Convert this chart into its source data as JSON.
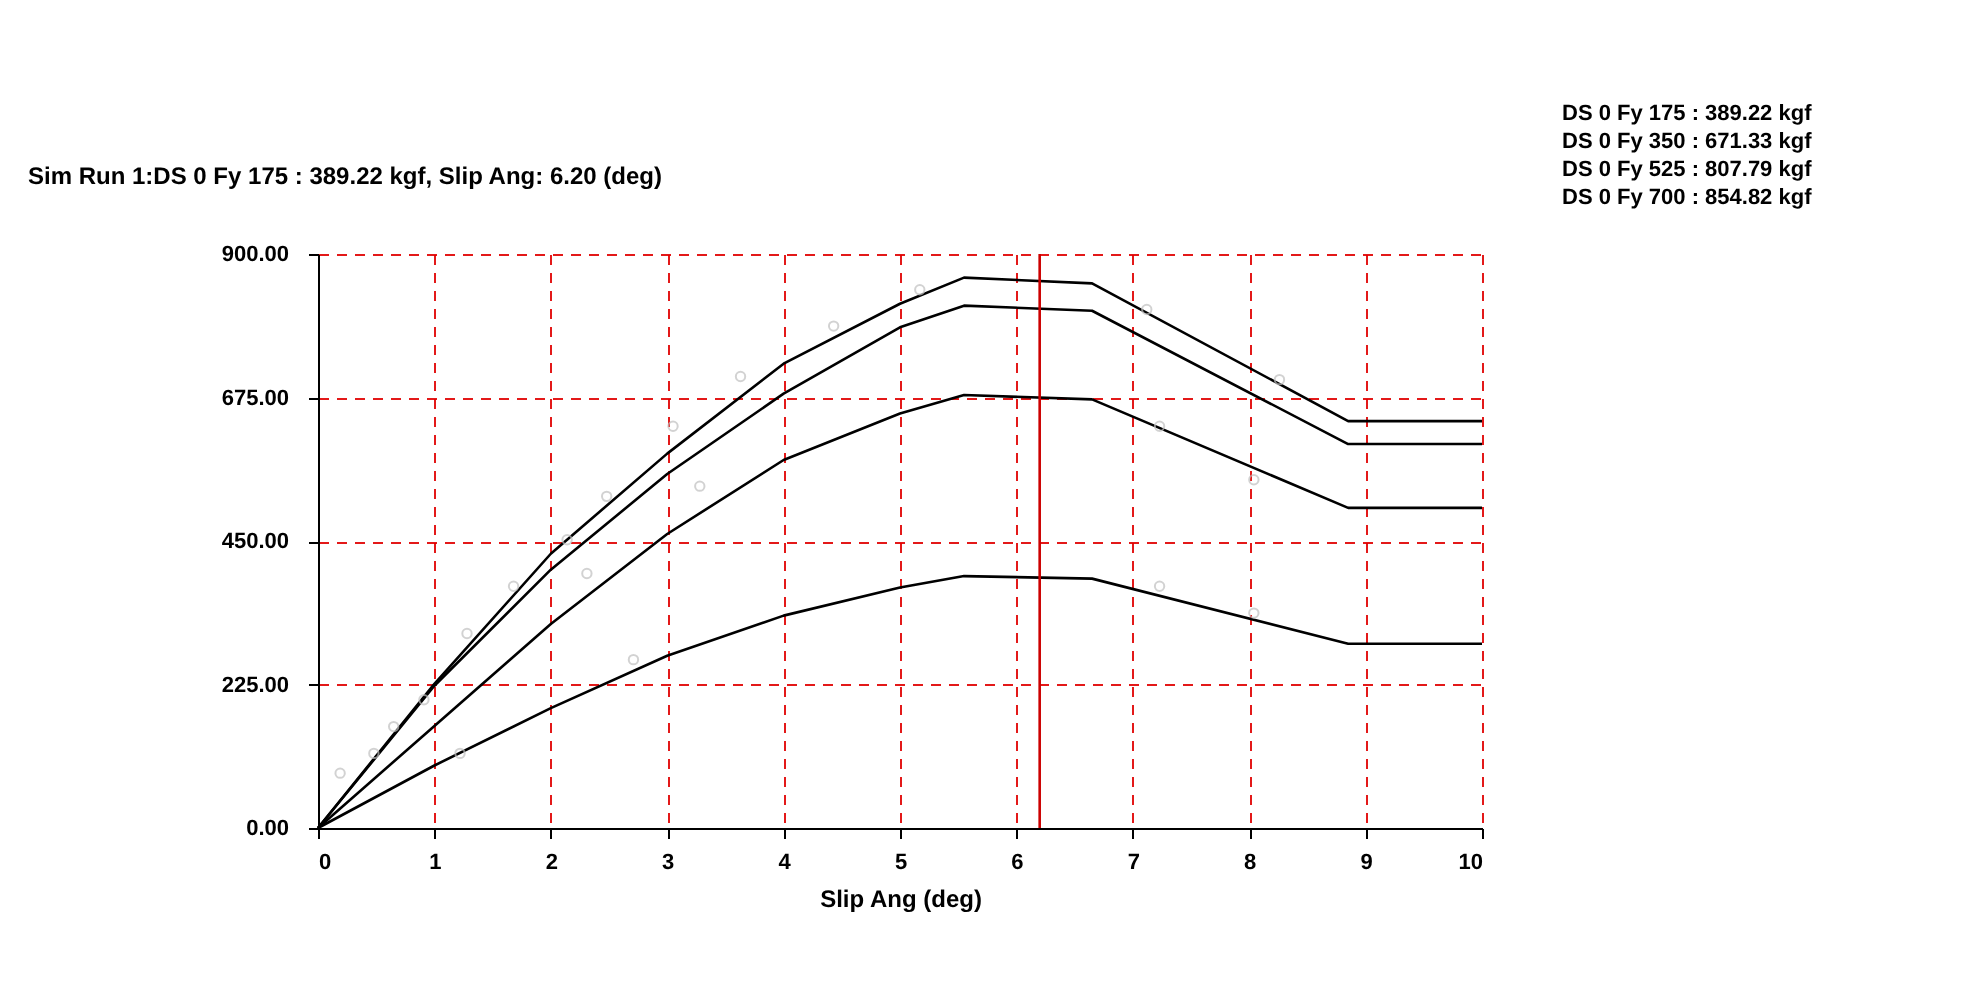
{
  "chart_data": {
    "type": "line",
    "title": "Sim Run 1:DS 0 Fy 175 : 389.22  kgf, Slip Ang: 6.20 (deg)",
    "xlabel": "Slip Ang (deg)",
    "annotations": [
      "DS 0 Fy 175 : 389.22  kgf",
      "DS 0 Fy 350 : 671.33  kgf",
      "DS 0 Fy 525 : 807.79  kgf",
      "DS 0 Fy 700 : 854.82  kgf"
    ],
    "x": [
      0,
      1,
      2,
      3,
      4,
      5,
      5.55,
      6.65,
      8.85,
      10
    ],
    "series": [
      {
        "color": "#000000",
        "values": [
          0,
          98,
          188,
          270,
          333,
          377,
          395,
          391,
          289,
          289
        ]
      },
      {
        "color": "#000000",
        "values": [
          0,
          160,
          320,
          461,
          577,
          650,
          679,
          672,
          502,
          502
        ]
      },
      {
        "color": "#000000",
        "values": [
          0,
          223,
          405,
          555,
          681,
          785,
          819,
          811,
          602,
          602
        ]
      },
      {
        "color": "#000000",
        "values": [
          0,
          226,
          430,
          587,
          728,
          822,
          863,
          854,
          638,
          638
        ]
      },
      {
        "type": "scatter",
        "color": "#c0c0c0",
        "marker": "circle",
        "x": [
          0.19,
          0.48,
          0.65,
          0.91,
          1.22,
          1.28,
          1.68,
          2.14,
          2.31,
          2.48,
          2.71,
          3.05,
          3.28,
          3.63,
          4.43,
          5.17,
          7.12,
          7.23,
          7.23,
          8.04,
          8.04,
          8.26
        ],
        "values": [
          86,
          117,
          159,
          201,
          117,
          305,
          379,
          452,
          399,
          520,
          264,
          630,
          536,
          708,
          787,
          844,
          813,
          630,
          379,
          546,
          337,
          703
        ]
      }
    ],
    "xlim": [
      0,
      10
    ],
    "xticks": [
      0,
      1,
      2,
      3,
      4,
      5,
      6,
      7,
      8,
      9,
      10
    ],
    "ylim": [
      0,
      900
    ],
    "yticks": [
      {
        "value": 0,
        "label": "0.00"
      },
      {
        "value": 225,
        "label": "225.00"
      },
      {
        "value": 450,
        "label": "450.00"
      },
      {
        "value": 675,
        "label": "675.00"
      },
      {
        "value": 900,
        "label": "900.00"
      }
    ],
    "grid": true,
    "marker": "none",
    "line_style": "solid",
    "ref_lines": [
      {
        "axis": "x",
        "value": 6.2,
        "color": "#cc0000"
      }
    ]
  }
}
